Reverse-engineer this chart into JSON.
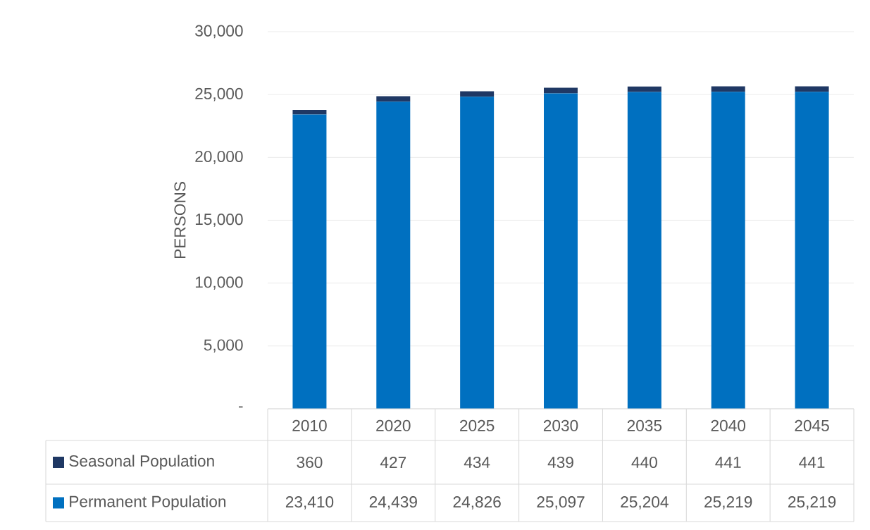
{
  "chart_data": {
    "type": "bar",
    "stacked": true,
    "ylabel": "PERSONS",
    "categories": [
      "2010",
      "2020",
      "2025",
      "2030",
      "2035",
      "2040",
      "2045"
    ],
    "series": [
      {
        "name": "Permanent Population",
        "color": "#0070c0",
        "values": [
          23410,
          24439,
          24826,
          25097,
          25204,
          25219,
          25219
        ],
        "value_labels": [
          "23,410",
          "24,439",
          "24,826",
          "25,097",
          "25,204",
          "25,219",
          "25,219"
        ]
      },
      {
        "name": "Seasonal Population",
        "color": "#1f3864",
        "values": [
          360,
          427,
          434,
          439,
          440,
          441,
          441
        ],
        "value_labels": [
          "360",
          "427",
          "434",
          "439",
          "440",
          "441",
          "441"
        ]
      }
    ],
    "ylim": [
      0,
      30000
    ],
    "yticks": [
      {
        "value": 0,
        "label": "-"
      },
      {
        "value": 5000,
        "label": "5,000"
      },
      {
        "value": 10000,
        "label": "10,000"
      },
      {
        "value": 15000,
        "label": "15,000"
      },
      {
        "value": 20000,
        "label": "20,000"
      },
      {
        "value": 25000,
        "label": "25,000"
      },
      {
        "value": 30000,
        "label": "30,000"
      }
    ],
    "grid": "y",
    "legend": "bottom"
  }
}
